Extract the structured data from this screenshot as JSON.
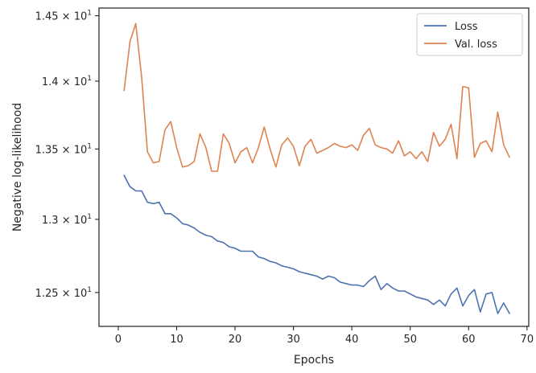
{
  "chart_data": {
    "type": "line",
    "xlabel": "Epochs",
    "ylabel": "Negative log-likelihood",
    "xlim": [
      -3.3,
      70.3
    ],
    "ylim": [
      12.275,
      14.56
    ],
    "y_scale": "log",
    "grid": false,
    "legend_position": "top-right",
    "x_ticks": [
      0,
      10,
      20,
      30,
      40,
      50,
      60,
      70
    ],
    "x_tick_labels": [
      "0",
      "10",
      "20",
      "30",
      "40",
      "50",
      "60",
      "70"
    ],
    "y_ticks": [
      12.5,
      13.0,
      13.5,
      14.0,
      14.5
    ],
    "y_tick_labels": [
      {
        "mant": "1.25",
        "exp": "1"
      },
      {
        "mant": "1.3",
        "exp": "1"
      },
      {
        "mant": "1.35",
        "exp": "1"
      },
      {
        "mant": "1.4",
        "exp": "1"
      },
      {
        "mant": "1.45",
        "exp": "1"
      }
    ],
    "x": [
      1,
      2,
      3,
      4,
      5,
      6,
      7,
      8,
      9,
      10,
      11,
      12,
      13,
      14,
      15,
      16,
      17,
      18,
      19,
      20,
      21,
      22,
      23,
      24,
      25,
      26,
      27,
      28,
      29,
      30,
      31,
      32,
      33,
      34,
      35,
      36,
      37,
      38,
      39,
      40,
      41,
      42,
      43,
      44,
      45,
      46,
      47,
      48,
      49,
      50,
      51,
      52,
      53,
      54,
      55,
      56,
      57,
      58,
      59,
      60,
      61,
      62,
      63,
      64,
      65,
      66,
      67
    ],
    "series": [
      {
        "name": "Loss",
        "color": "#4c72b0",
        "values": [
          13.31,
          13.23,
          13.2,
          13.2,
          13.12,
          13.11,
          13.12,
          13.04,
          13.04,
          13.01,
          12.97,
          12.96,
          12.94,
          12.91,
          12.89,
          12.88,
          12.85,
          12.84,
          12.81,
          12.8,
          12.78,
          12.78,
          12.78,
          12.74,
          12.73,
          12.71,
          12.7,
          12.68,
          12.67,
          12.66,
          12.64,
          12.63,
          12.62,
          12.61,
          12.59,
          12.61,
          12.6,
          12.57,
          12.56,
          12.55,
          12.55,
          12.54,
          12.58,
          12.61,
          12.52,
          12.56,
          12.53,
          12.51,
          12.51,
          12.49,
          12.47,
          12.46,
          12.45,
          12.42,
          12.45,
          12.41,
          12.49,
          12.53,
          12.41,
          12.48,
          12.52,
          12.37,
          12.49,
          12.5,
          12.36,
          12.43,
          12.36
        ]
      },
      {
        "name": "Val. loss",
        "color": "#dd8452",
        "values": [
          13.93,
          14.3,
          14.44,
          14.03,
          13.48,
          13.4,
          13.41,
          13.64,
          13.7,
          13.51,
          13.37,
          13.38,
          13.41,
          13.61,
          13.51,
          13.34,
          13.34,
          13.61,
          13.54,
          13.4,
          13.48,
          13.51,
          13.4,
          13.51,
          13.66,
          13.5,
          13.37,
          13.53,
          13.58,
          13.52,
          13.38,
          13.52,
          13.57,
          13.47,
          13.49,
          13.51,
          13.54,
          13.52,
          13.51,
          13.53,
          13.49,
          13.6,
          13.65,
          13.53,
          13.51,
          13.5,
          13.47,
          13.56,
          13.45,
          13.48,
          13.43,
          13.48,
          13.41,
          13.62,
          13.52,
          13.57,
          13.68,
          13.43,
          13.96,
          13.95,
          13.44,
          13.54,
          13.56,
          13.48,
          13.77,
          13.53,
          13.44
        ]
      }
    ]
  }
}
